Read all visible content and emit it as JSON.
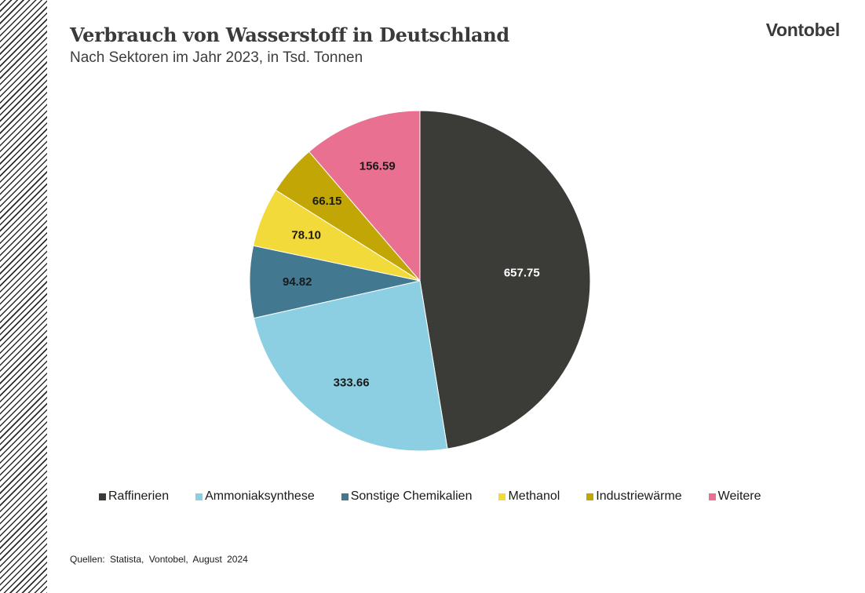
{
  "header": {
    "title": "Verbrauch von Wasserstoff in Deutschland",
    "subtitle": "Nach Sektoren im Jahr 2023, in Tsd. Tonnen",
    "logo": "Vontobel"
  },
  "footer": {
    "source": "Quellen: Statista, Vontobel, August 2024"
  },
  "chart_data": {
    "type": "pie",
    "title": "Verbrauch von Wasserstoff in Deutschland",
    "subtitle": "Nach Sektoren im Jahr 2023, in Tsd. Tonnen",
    "legend_position": "bottom",
    "slices": [
      {
        "label": "Raffinerien",
        "value": 657.75,
        "display": "657.75",
        "color": "#3b3c38",
        "label_color": "#ffffff"
      },
      {
        "label": "Ammoniaksynthese",
        "value": 333.66,
        "display": "333.66",
        "color": "#8ccfe2",
        "label_color": "#1a1a1a"
      },
      {
        "label": "Sonstige Chemikalien",
        "value": 94.82,
        "display": "94.82",
        "color": "#427890",
        "label_color": "#1a1a1a"
      },
      {
        "label": "Methanol",
        "value": 78.1,
        "display": "78.10",
        "color": "#f3da3b",
        "label_color": "#1a1a1a"
      },
      {
        "label": "Industriewärme",
        "value": 66.15,
        "display": "66.15",
        "color": "#c2a605",
        "label_color": "#1a1a1a"
      },
      {
        "label": "Weitere",
        "value": 156.59,
        "display": "156.59",
        "color": "#e97090",
        "label_color": "#1a1a1a"
      }
    ]
  }
}
